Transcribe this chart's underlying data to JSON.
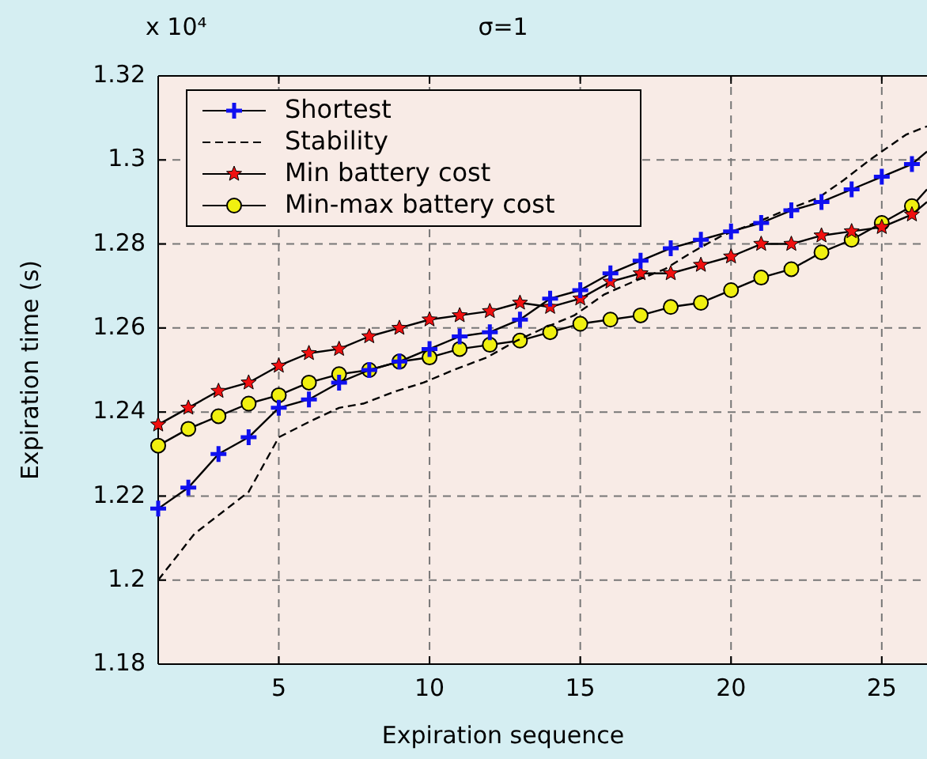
{
  "chart_data": {
    "type": "line",
    "title": "σ=1",
    "xlabel": "Expiration sequence",
    "ylabel": "Expiration time (s)",
    "annotations": [
      "x 10⁴"
    ],
    "xlim": [
      1,
      26.5
    ],
    "xticks": [
      5,
      10,
      15,
      20,
      25
    ],
    "ylim": [
      1.18,
      1.32
    ],
    "yticks": [
      1.18,
      1.2,
      1.22,
      1.24,
      1.26,
      1.28,
      1.3,
      1.32
    ],
    "grid": true,
    "legend": "top left",
    "series": [
      {
        "name": "Shortest",
        "color": "#1010f0",
        "marker": "cross",
        "line_style": "solid",
        "x": [
          1,
          2,
          3,
          4,
          5,
          6,
          7,
          8,
          9,
          10,
          11,
          12,
          13,
          14,
          15,
          16,
          17,
          18,
          19,
          20,
          21,
          22,
          23,
          24,
          25,
          26,
          26.5
        ],
        "values": [
          1.217,
          1.222,
          1.23,
          1.234,
          1.241,
          1.243,
          1.247,
          1.25,
          1.252,
          1.255,
          1.258,
          1.259,
          1.262,
          1.267,
          1.269,
          1.273,
          1.276,
          1.279,
          1.281,
          1.283,
          1.285,
          1.288,
          1.29,
          1.293,
          1.296,
          1.299,
          1.302
        ]
      },
      {
        "name": "Stability",
        "color": "#000000",
        "marker": "none",
        "line_style": "dashed",
        "x": [
          1,
          2.2,
          4,
          5,
          6.1,
          7,
          7.8,
          8.9,
          9.8,
          10.8,
          11.9,
          12.9,
          13.8,
          14.8,
          15.8,
          16.75,
          17.8,
          18.7,
          19.7,
          20.8,
          21.8,
          22.9,
          23.7,
          24.6,
          25.8,
          26.5
        ],
        "values": [
          1.2,
          1.211,
          1.221,
          1.234,
          1.238,
          1.241,
          1.242,
          1.245,
          1.247,
          1.25,
          1.253,
          1.257,
          1.26,
          1.263,
          1.268,
          1.271,
          1.274,
          1.278,
          1.282,
          1.285,
          1.288,
          1.291,
          1.295,
          1.3,
          1.306,
          1.308
        ]
      },
      {
        "name": "Min battery cost",
        "color": "#f01010",
        "marker": "star",
        "line_style": "solid",
        "x": [
          1,
          2,
          3,
          4,
          5,
          6,
          7,
          8,
          9,
          10,
          11,
          12,
          13,
          14,
          15,
          16,
          17,
          18,
          19,
          20,
          21,
          22,
          23,
          24,
          25,
          26,
          26.5
        ],
        "values": [
          1.237,
          1.241,
          1.245,
          1.247,
          1.251,
          1.254,
          1.255,
          1.258,
          1.26,
          1.262,
          1.263,
          1.264,
          1.266,
          1.265,
          1.267,
          1.271,
          1.273,
          1.273,
          1.275,
          1.277,
          1.28,
          1.28,
          1.282,
          1.283,
          1.284,
          1.287,
          1.29
        ]
      },
      {
        "name": "Min-max battery cost",
        "color": "#f0f010",
        "marker": "circle",
        "line_style": "solid",
        "x": [
          1,
          2,
          3,
          4,
          5,
          6,
          7,
          8,
          9,
          10,
          11,
          12,
          13,
          14,
          15,
          16,
          17,
          18,
          19,
          20,
          21,
          22,
          23,
          24,
          25,
          26,
          26.5
        ],
        "values": [
          1.232,
          1.236,
          1.239,
          1.242,
          1.244,
          1.247,
          1.249,
          1.25,
          1.252,
          1.253,
          1.255,
          1.256,
          1.257,
          1.259,
          1.261,
          1.262,
          1.263,
          1.265,
          1.266,
          1.269,
          1.272,
          1.274,
          1.278,
          1.281,
          1.285,
          1.289,
          1.293
        ]
      }
    ]
  }
}
